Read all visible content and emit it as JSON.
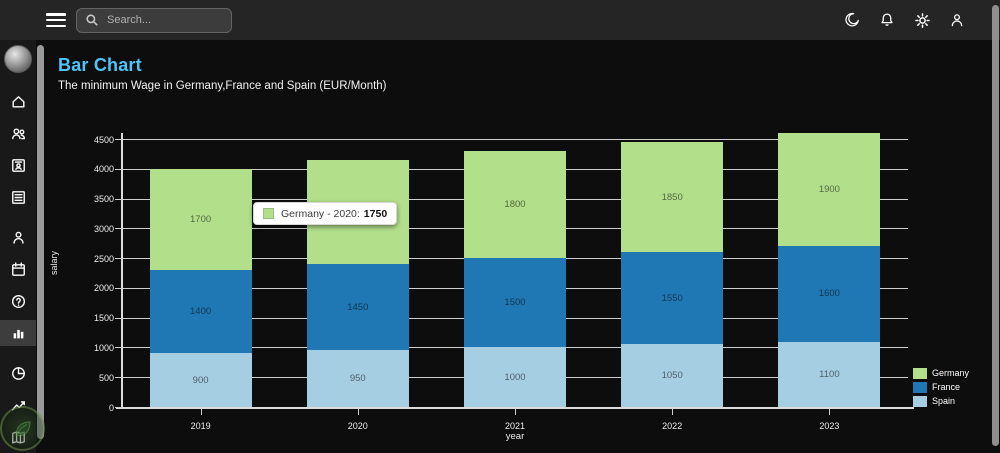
{
  "topbar": {
    "search": {
      "placeholder": "Search..."
    },
    "icon_names": [
      "menu-icon",
      "search-icon",
      "moon-icon",
      "bell-icon",
      "gear-icon",
      "user-icon"
    ]
  },
  "sidebar": {
    "avatar_name": "profile-avatar",
    "items": [
      {
        "icon": "home",
        "active": false,
        "gap_before": false
      },
      {
        "icon": "people",
        "active": false,
        "gap_before": false
      },
      {
        "icon": "contact-badge",
        "active": false,
        "gap_before": false
      },
      {
        "icon": "list",
        "active": false,
        "gap_before": false
      },
      {
        "icon": "person",
        "active": false,
        "gap_before": true
      },
      {
        "icon": "calendar",
        "active": false,
        "gap_before": false
      },
      {
        "icon": "help",
        "active": false,
        "gap_before": false
      },
      {
        "icon": "bar-chart",
        "active": true,
        "gap_before": true
      },
      {
        "icon": "pie-chart",
        "active": false,
        "gap_before": true
      },
      {
        "icon": "line-chart",
        "active": false,
        "gap_before": false
      },
      {
        "icon": "map",
        "active": false,
        "gap_before": false
      }
    ]
  },
  "page": {
    "title": "Bar Chart",
    "subtitle": "The minimum Wage in Germany,France and Spain (EUR/Month)",
    "title_color": "#4fc3f7"
  },
  "chart_data": {
    "type": "bar",
    "stacked": true,
    "categories": [
      "2019",
      "2020",
      "2021",
      "2022",
      "2023"
    ],
    "series": [
      {
        "name": "Spain",
        "color": "#a6cee3",
        "values": [
          900,
          950,
          1000,
          1050,
          1100
        ]
      },
      {
        "name": "France",
        "color": "#1f78b4",
        "values": [
          1400,
          1450,
          1500,
          1550,
          1600
        ]
      },
      {
        "name": "Germany",
        "color": "#b2df8a",
        "values": [
          1700,
          1750,
          1800,
          1850,
          1900
        ]
      }
    ],
    "xlabel": "year",
    "ylabel": "salary",
    "ylim": [
      0,
      4500
    ],
    "ytick_step": 500,
    "grid": true,
    "legend": {
      "position": "right-bottom",
      "entries": [
        "Germany",
        "France",
        "Spain"
      ]
    }
  },
  "tooltip": {
    "text": "Germany - 2020:",
    "value": "1750",
    "swatch_color": "#b2df8a"
  }
}
